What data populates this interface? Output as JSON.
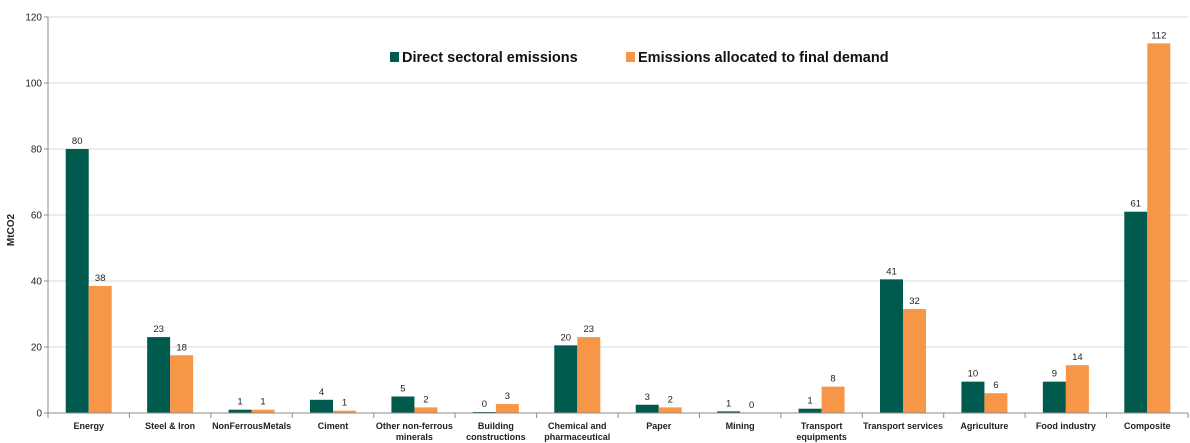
{
  "chart_data": {
    "type": "bar",
    "ylabel": "MtCO2",
    "xlabel": "",
    "title": "",
    "ylim": [
      0,
      120
    ],
    "yticks": [
      0,
      20,
      40,
      60,
      80,
      100,
      120
    ],
    "grid": true,
    "legend_position": "top-center",
    "categories": [
      "Energy",
      "Steel & Iron",
      "NonFerrousMetals",
      "Ciment",
      "Other non-ferrous minerals",
      "Building constructions",
      "Chemical and pharmaceutical",
      "Paper",
      "Mining",
      "Transport equipments",
      "Transport services",
      "Agriculture",
      "Food industry",
      "Composite"
    ],
    "category_lines": [
      [
        "Energy"
      ],
      [
        "Steel & Iron"
      ],
      [
        "NonFerrousMetals"
      ],
      [
        "Ciment"
      ],
      [
        "Other non-ferrous",
        "minerals"
      ],
      [
        "Building",
        "constructions"
      ],
      [
        "Chemical and",
        "pharmaceutical"
      ],
      [
        "Paper"
      ],
      [
        "Mining"
      ],
      [
        "Transport",
        "equipments"
      ],
      [
        "Transport services"
      ],
      [
        "Agriculture"
      ],
      [
        "Food industry"
      ],
      [
        "Composite"
      ]
    ],
    "series": [
      {
        "name": "Direct sectoral emissions",
        "color": "#005a4e",
        "values": [
          80,
          23,
          1,
          4,
          5,
          0.3,
          20.5,
          2.5,
          0.5,
          1.3,
          40.5,
          9.5,
          9.5,
          61
        ],
        "labels": [
          "80",
          "23",
          "1",
          "4",
          "5",
          "0",
          "20",
          "3",
          "1",
          "1",
          "41",
          "10",
          "9",
          "61"
        ]
      },
      {
        "name": "Emissions allocated to final demand",
        "color": "#f79646",
        "values": [
          38.5,
          17.5,
          1,
          0.7,
          1.7,
          2.7,
          23,
          1.7,
          0,
          8,
          31.5,
          6,
          14.5,
          112
        ],
        "labels": [
          "38",
          "18",
          "1",
          "1",
          "2",
          "3",
          "23",
          "2",
          "0",
          "8",
          "32",
          "6",
          "14",
          "112"
        ]
      }
    ]
  }
}
